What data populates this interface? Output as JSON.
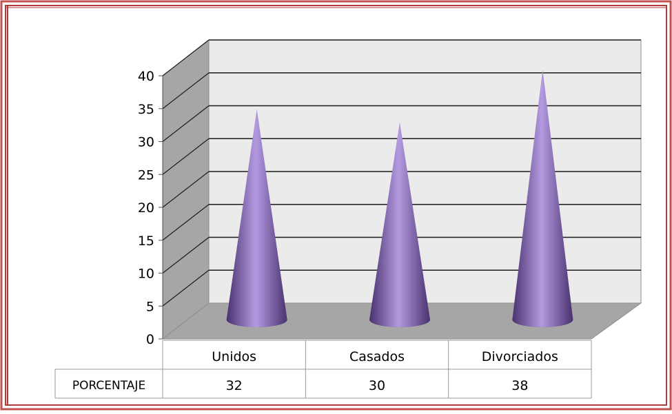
{
  "chart_data": {
    "type": "bar",
    "bar_shape": "cone-3d",
    "categories": [
      "Unidos",
      "Casados",
      "Divorciados"
    ],
    "series": [
      {
        "name": "PORCENTAJE",
        "values": [
          32,
          30,
          38
        ]
      }
    ],
    "title": "",
    "xlabel": "",
    "ylabel": "",
    "ylim": [
      0,
      40
    ],
    "yticks": [
      0,
      5,
      10,
      15,
      20,
      25,
      30,
      35,
      40
    ],
    "grid": true,
    "legend": "data-table-below",
    "colors": {
      "bar": "#8a6bbf",
      "bar_dark": "#4a3270",
      "bar_light": "#b49ae0",
      "back_wall": "#ebebeb",
      "side_wall": "#a6a6a6",
      "floor": "#a6a6a6",
      "grid": "#1a1a1a",
      "border": "#b03a3a"
    }
  }
}
